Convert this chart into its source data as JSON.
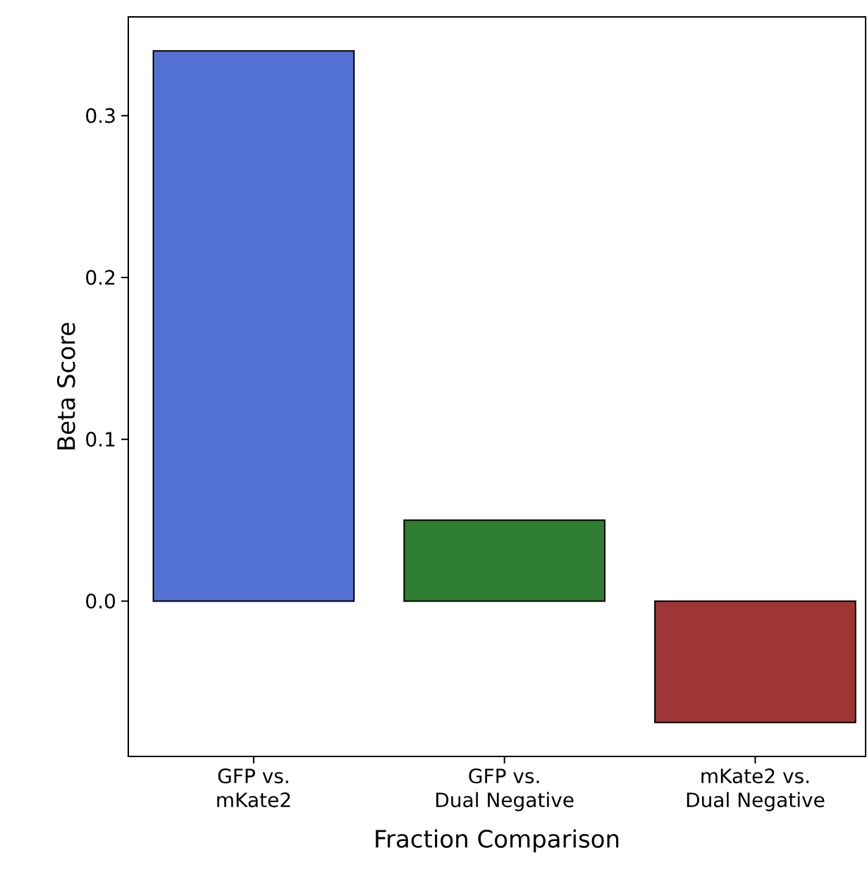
{
  "chart_data": {
    "type": "bar",
    "xlabel": "Fraction Comparison",
    "ylabel": "Beta Score",
    "categories": [
      "GFP vs.\nmKate2",
      "GFP vs.\nDual Negative",
      "mKate2 vs.\nDual Negative"
    ],
    "values": [
      0.34,
      0.05,
      -0.075
    ],
    "colors": [
      "#5472d3",
      "#2e7d32",
      "#a03535"
    ],
    "ylim": [
      -0.096,
      0.361
    ],
    "yticks": [
      {
        "value": 0,
        "label": "0.0"
      },
      0.1,
      0.2,
      0.3
    ],
    "grid": false
  }
}
